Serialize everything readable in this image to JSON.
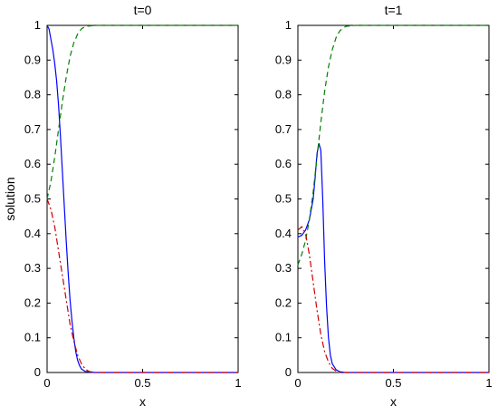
{
  "chart_data": [
    {
      "type": "line",
      "title": "t=0",
      "xlabel": "x",
      "ylabel": "solution",
      "xlim": [
        0,
        1
      ],
      "ylim": [
        0,
        1
      ],
      "xticks": [
        "0",
        "0.5",
        "1"
      ],
      "yticks": [
        "0",
        "0.1",
        "0.2",
        "0.3",
        "0.4",
        "0.5",
        "0.6",
        "0.7",
        "0.8",
        "0.9",
        "1"
      ],
      "grid": false,
      "series": [
        {
          "color": "#0000ff",
          "style": "solid",
          "points": [
            [
              0,
              1.0
            ],
            [
              0.01,
              0.99
            ],
            [
              0.02,
              0.96
            ],
            [
              0.03,
              0.93
            ],
            [
              0.04,
              0.89
            ],
            [
              0.05,
              0.84
            ],
            [
              0.06,
              0.77
            ],
            [
              0.07,
              0.68
            ],
            [
              0.08,
              0.58
            ],
            [
              0.09,
              0.48
            ],
            [
              0.1,
              0.38
            ],
            [
              0.11,
              0.29
            ],
            [
              0.12,
              0.21
            ],
            [
              0.13,
              0.15
            ],
            [
              0.14,
              0.1
            ],
            [
              0.15,
              0.06
            ],
            [
              0.16,
              0.035
            ],
            [
              0.17,
              0.02
            ],
            [
              0.18,
              0.01
            ],
            [
              0.2,
              0.003
            ],
            [
              0.25,
              0.0
            ],
            [
              0.5,
              0.0
            ],
            [
              1.0,
              0.0
            ]
          ]
        },
        {
          "color": "#008000",
          "style": "dashed",
          "points": [
            [
              0,
              0.5
            ],
            [
              0.02,
              0.55
            ],
            [
              0.04,
              0.62
            ],
            [
              0.06,
              0.7
            ],
            [
              0.08,
              0.78
            ],
            [
              0.1,
              0.85
            ],
            [
              0.12,
              0.91
            ],
            [
              0.14,
              0.95
            ],
            [
              0.16,
              0.975
            ],
            [
              0.18,
              0.99
            ],
            [
              0.2,
              0.997
            ],
            [
              0.25,
              1.0
            ],
            [
              0.5,
              1.0
            ],
            [
              1.0,
              1.0
            ]
          ]
        },
        {
          "color": "#cc0000",
          "style": "dashdot",
          "points": [
            [
              0,
              0.5
            ],
            [
              0.02,
              0.47
            ],
            [
              0.04,
              0.42
            ],
            [
              0.06,
              0.35
            ],
            [
              0.08,
              0.28
            ],
            [
              0.1,
              0.21
            ],
            [
              0.12,
              0.14
            ],
            [
              0.14,
              0.09
            ],
            [
              0.16,
              0.05
            ],
            [
              0.18,
              0.025
            ],
            [
              0.2,
              0.01
            ],
            [
              0.22,
              0.003
            ],
            [
              0.25,
              0.0
            ],
            [
              0.5,
              0.0
            ],
            [
              1.0,
              0.0
            ]
          ]
        }
      ]
    },
    {
      "type": "line",
      "title": "t=1",
      "xlabel": "x",
      "ylabel": "",
      "xlim": [
        0,
        1
      ],
      "ylim": [
        0,
        1
      ],
      "xticks": [
        "0",
        "0.5",
        "1"
      ],
      "yticks": [
        "0",
        "0.1",
        "0.2",
        "0.3",
        "0.4",
        "0.5",
        "0.6",
        "0.7",
        "0.8",
        "0.9",
        "1"
      ],
      "grid": false,
      "series": [
        {
          "color": "#0000ff",
          "style": "solid",
          "points": [
            [
              0,
              0.39
            ],
            [
              0.02,
              0.395
            ],
            [
              0.04,
              0.41
            ],
            [
              0.06,
              0.44
            ],
            [
              0.08,
              0.5
            ],
            [
              0.09,
              0.56
            ],
            [
              0.1,
              0.63
            ],
            [
              0.11,
              0.66
            ],
            [
              0.12,
              0.64
            ],
            [
              0.13,
              0.5
            ],
            [
              0.14,
              0.32
            ],
            [
              0.15,
              0.19
            ],
            [
              0.16,
              0.1
            ],
            [
              0.17,
              0.05
            ],
            [
              0.18,
              0.025
            ],
            [
              0.2,
              0.008
            ],
            [
              0.22,
              0.002
            ],
            [
              0.25,
              0.0
            ],
            [
              0.5,
              0.0
            ],
            [
              1.0,
              0.0
            ]
          ]
        },
        {
          "color": "#008000",
          "style": "dashed",
          "points": [
            [
              0,
              0.31
            ],
            [
              0.02,
              0.34
            ],
            [
              0.04,
              0.38
            ],
            [
              0.06,
              0.44
            ],
            [
              0.08,
              0.52
            ],
            [
              0.1,
              0.62
            ],
            [
              0.12,
              0.72
            ],
            [
              0.14,
              0.81
            ],
            [
              0.16,
              0.88
            ],
            [
              0.18,
              0.93
            ],
            [
              0.2,
              0.965
            ],
            [
              0.22,
              0.985
            ],
            [
              0.25,
              0.997
            ],
            [
              0.3,
              1.0
            ],
            [
              0.5,
              1.0
            ],
            [
              1.0,
              1.0
            ]
          ]
        },
        {
          "color": "#cc0000",
          "style": "dashdot",
          "points": [
            [
              0,
              0.41
            ],
            [
              0.02,
              0.42
            ],
            [
              0.04,
              0.4
            ],
            [
              0.06,
              0.34
            ],
            [
              0.08,
              0.26
            ],
            [
              0.1,
              0.18
            ],
            [
              0.12,
              0.11
            ],
            [
              0.14,
              0.06
            ],
            [
              0.16,
              0.03
            ],
            [
              0.18,
              0.012
            ],
            [
              0.2,
              0.004
            ],
            [
              0.22,
              0.0
            ],
            [
              0.5,
              0.0
            ],
            [
              1.0,
              0.0
            ]
          ]
        }
      ]
    }
  ]
}
